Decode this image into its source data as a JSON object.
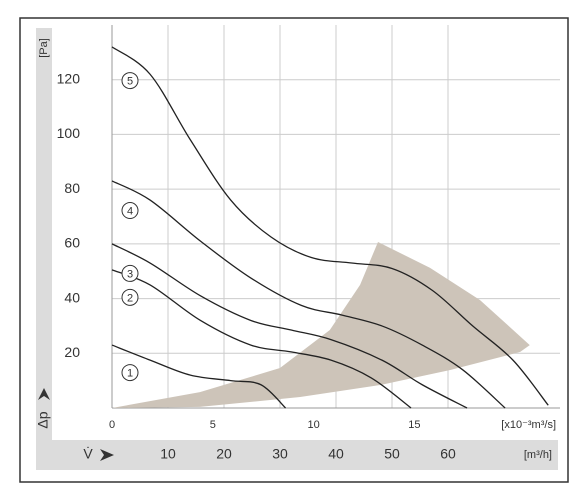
{
  "chart_data": {
    "type": "line",
    "x_label": "V̇",
    "x_unit": "[m³/h]",
    "x2_unit": "[x10⁻³m³/s]",
    "y_label": "Δp",
    "y_unit": "[Pa]",
    "xlim": [
      0,
      80
    ],
    "xticks": [
      10,
      20,
      30,
      40,
      50,
      60
    ],
    "x2lim": [
      0,
      22.22
    ],
    "x2ticks": [
      0,
      5,
      10,
      15
    ],
    "ylim": [
      0,
      140
    ],
    "yticks": [
      20,
      40,
      60,
      80,
      100,
      120
    ],
    "grid": true,
    "series": [
      {
        "name": "1",
        "color": "#222222",
        "x": [
          0,
          6.8,
          14,
          21.2,
          26.6,
          31
        ],
        "values": [
          23,
          17.5,
          12,
          10,
          8.5,
          0
        ]
      },
      {
        "name": "2",
        "color": "#222222",
        "x": [
          0,
          6.8,
          15.8,
          24.8,
          32,
          39.1,
          46.3,
          53.4
        ],
        "values": [
          50.5,
          45,
          32,
          23,
          20.5,
          17.5,
          11,
          0
        ]
      },
      {
        "name": "3",
        "color": "#222222",
        "x": [
          0,
          6.8,
          15.8,
          24.8,
          32,
          39.1,
          48.2,
          55.4,
          63.4
        ],
        "values": [
          60,
          53,
          41,
          32,
          28.5,
          25,
          17.5,
          8.5,
          0
        ]
      },
      {
        "name": "4",
        "color": "#222222",
        "x": [
          0,
          6.8,
          15.8,
          24.8,
          33.8,
          41,
          48.2,
          55.4,
          62.6,
          70.2
        ],
        "values": [
          83,
          76,
          61,
          47.5,
          37.5,
          34,
          30,
          23,
          14,
          0
        ]
      },
      {
        "name": "5",
        "color": "#222222",
        "x": [
          0,
          6.8,
          14,
          21.2,
          28.4,
          35.6,
          42.8,
          50,
          57.2,
          64.4,
          71.6,
          77.9
        ],
        "values": [
          132,
          122,
          98,
          76,
          62.5,
          55,
          53,
          51,
          43,
          30,
          17.5,
          1
        ]
      }
    ],
    "region": {
      "color": "#cdc4b9",
      "x": [
        0,
        15.7,
        30,
        38.9,
        44.3,
        47.5,
        56.8,
        65.7,
        74.6,
        72.9,
        60.4,
        47.9,
        33.6,
        15.7
      ],
      "values": [
        0,
        5.8,
        14.6,
        28.5,
        45,
        60.7,
        51.2,
        39.5,
        23,
        20.5,
        13.9,
        8.4,
        4,
        0.4
      ]
    }
  }
}
